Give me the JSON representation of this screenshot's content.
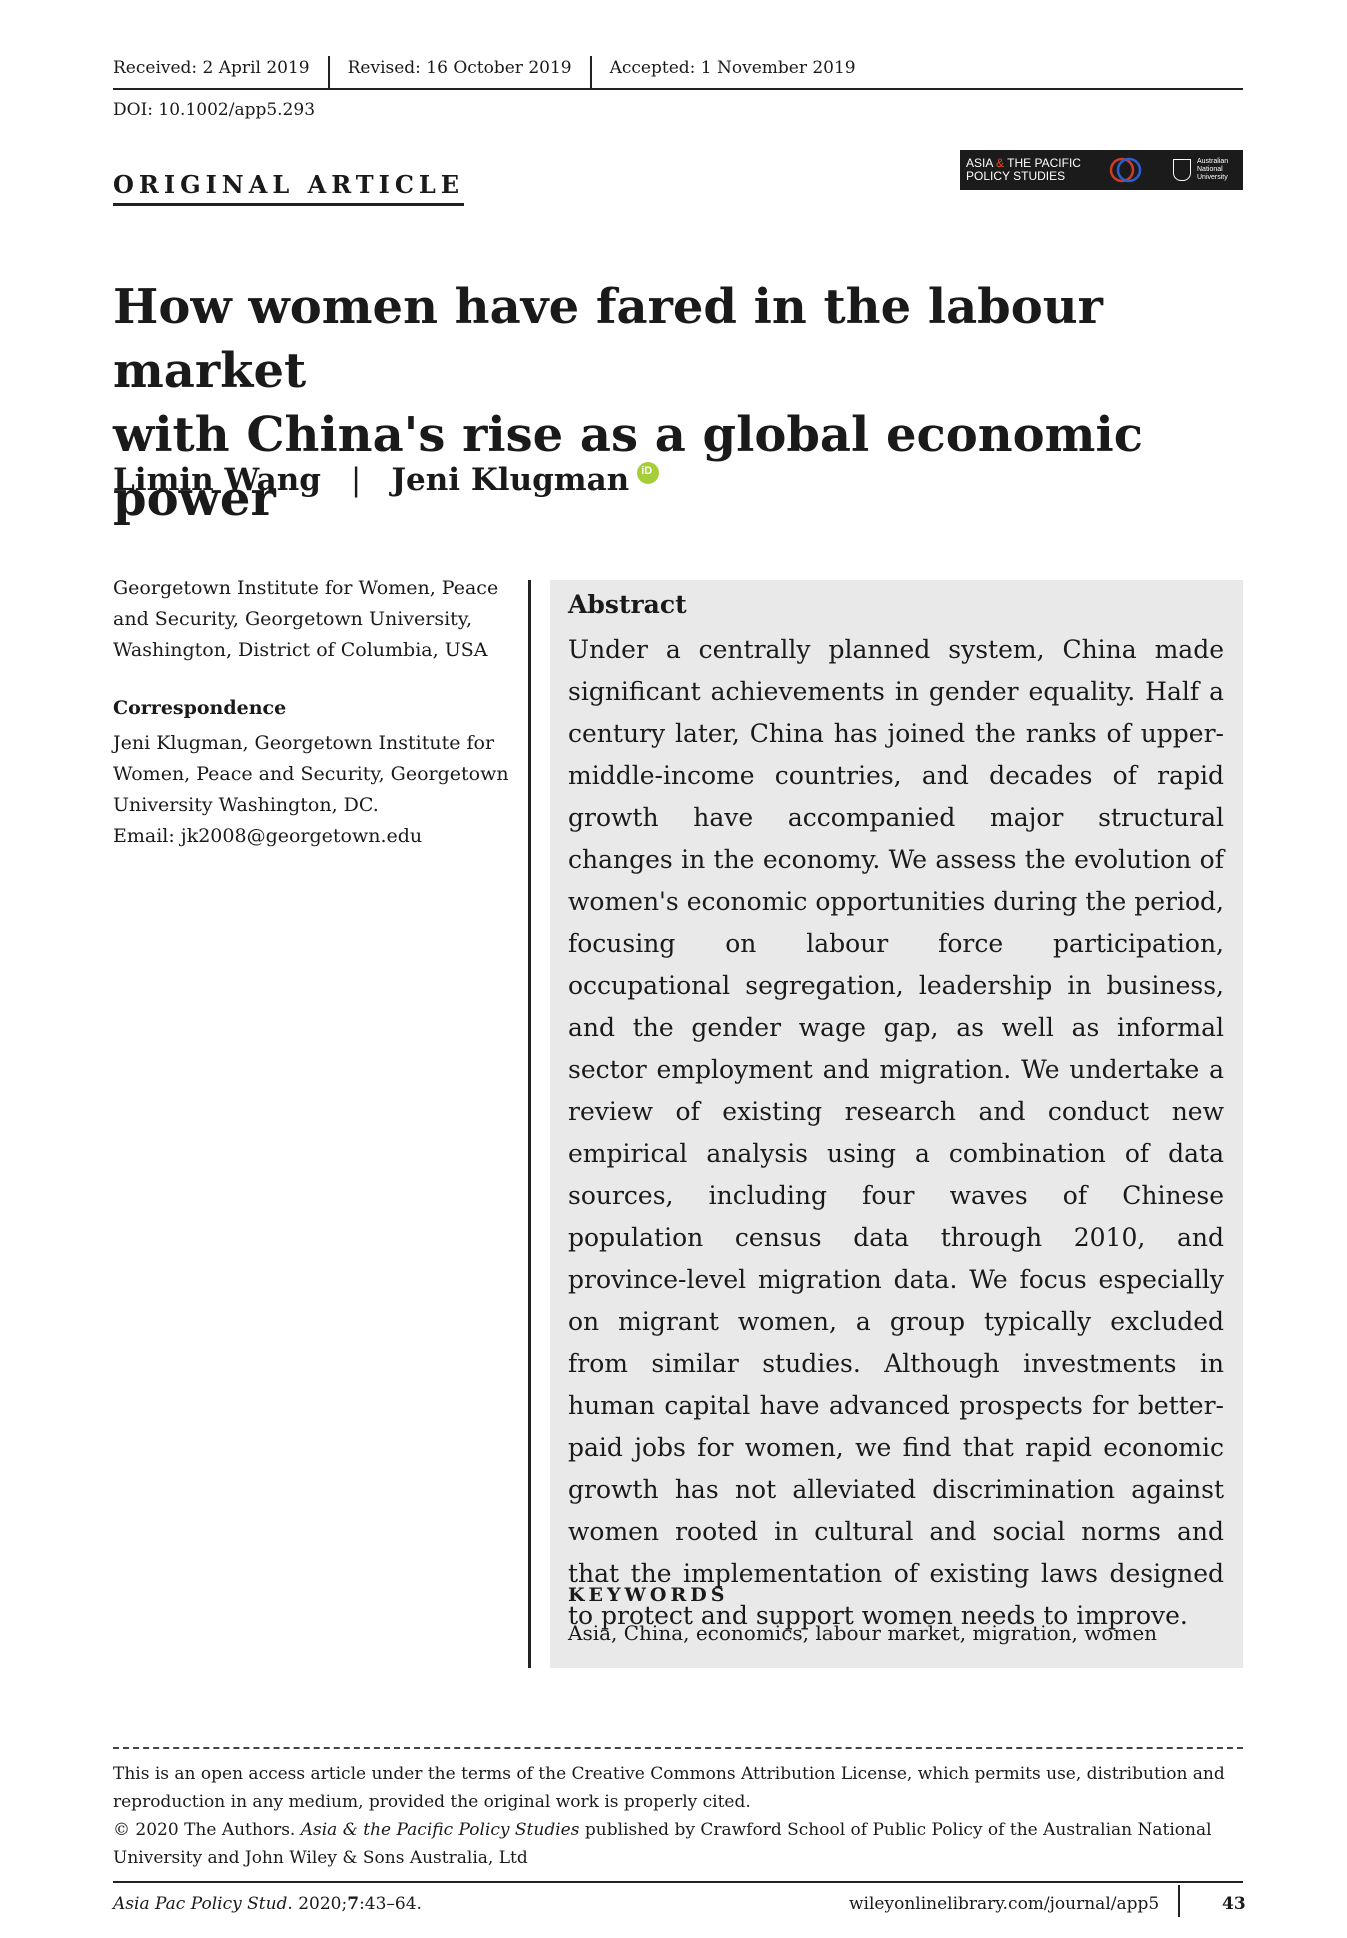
{
  "header": {
    "received": "Received: 2 April 2019",
    "revised": "Revised: 16 October 2019",
    "accepted": "Accepted: 1 November 2019",
    "doi": "DOI: 10.1002/app5.293"
  },
  "section_label": "ORIGINAL ARTICLE",
  "logo": {
    "line1_a": "ASIA ",
    "line1_amp": "&",
    "line1_b": " THE PACIFIC",
    "line2": "POLICY STUDIES",
    "university": "Australian National University"
  },
  "title_lines": [
    "How women have fared in the labour market",
    "with China's rise as a global economic power"
  ],
  "authors": [
    "Limin Wang",
    "|",
    "Jeni Klugman"
  ],
  "affiliation": "Georgetown Institute for Women, Peace and Security, Georgetown University, Washington, District of Columbia, USA",
  "correspondence_heading": "Correspondence",
  "correspondence": "Jeni Klugman, Georgetown Institute for Women, Peace and Security, Georgetown University Washington, DC.",
  "email": "Email:  jk2008@georgetown.edu",
  "abstract_heading": "Abstract",
  "abstract": "Under a centrally planned system, China made significant achievements in gender equality. Half a century later, China has joined the ranks of upper-middle-income countries, and decades of rapid growth have accompanied major structural changes in the economy. We assess the evolution of women's economic opportunities during the period, focusing on labour force participation, occupational segregation, leadership in business, and the gender wage gap, as well as informal sector employment and migration. We undertake a review of existing research and conduct new empirical analysis using a combination of data sources, including four waves of Chinese population census data through 2010, and province-level migration data. We focus especially on migrant women, a group typically excluded from similar studies. Although investments in human capital have advanced prospects for better-paid jobs for women, we find that rapid economic growth has not alleviated discrimination against women rooted in cultural and social norms and that the implementation of existing laws designed to protect and support women needs to improve.",
  "keywords_heading": "KEYWORDS",
  "keywords": "Asia, China, economics, labour market, migration, women",
  "license": {
    "line1": "This is an open access article under the terms of the Creative Commons Attribution License, which permits use, distribution and reproduction in any medium, provided the original work is properly cited.",
    "copyright_a": "© 2020 The Authors. ",
    "journal_italic": "Asia & the Pacific Policy Studies",
    "copyright_b": " published by Crawford School of Public Policy of the Australian National University and John Wiley & Sons Australia, Ltd"
  },
  "footer": {
    "citation_journal": "Asia Pac Policy Stud.",
    "citation_rest": " 2020;",
    "citation_vol": "7",
    "citation_pages": ":43–64.",
    "url": "wileyonlinelibrary.com/journal/app5",
    "page": "43"
  }
}
